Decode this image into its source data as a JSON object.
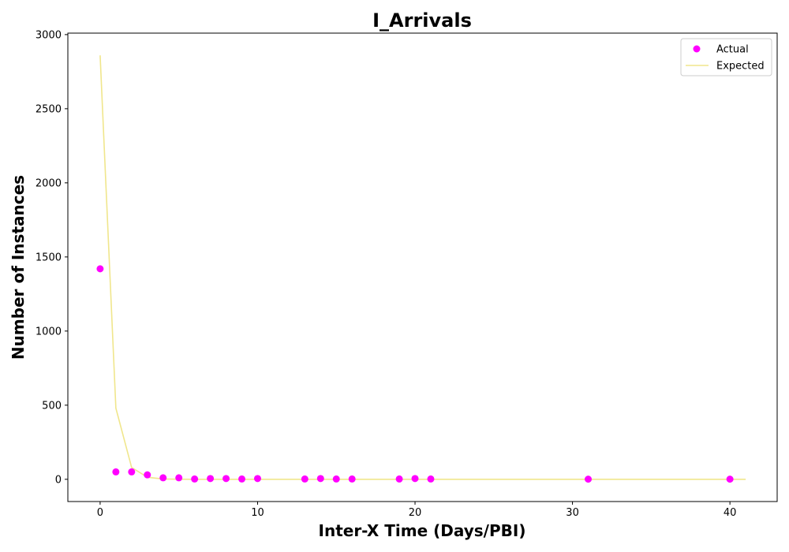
{
  "chart_data": {
    "type": "scatter",
    "title": "I_Arrivals",
    "xlabel": "Inter-X Time (Days/PBI)",
    "ylabel": "Number of Instances",
    "xlim": [
      -2.05,
      43
    ],
    "ylim": [
      -150,
      3010
    ],
    "xticks": [
      0,
      10,
      20,
      30,
      40
    ],
    "yticks": [
      0,
      500,
      1000,
      1500,
      2000,
      2500,
      3000
    ],
    "grid": false,
    "legend_position": "top-right",
    "series": [
      {
        "name": "Actual",
        "kind": "scatter",
        "color": "#ff00ff",
        "x": [
          0,
          1,
          2,
          3,
          4,
          5,
          6,
          7,
          8,
          9,
          10,
          13,
          14,
          15,
          16,
          19,
          20,
          21,
          31,
          40
        ],
        "y": [
          1420,
          50,
          50,
          30,
          10,
          10,
          2,
          5,
          5,
          2,
          5,
          2,
          5,
          2,
          2,
          2,
          5,
          2,
          1,
          1
        ]
      },
      {
        "name": "Expected",
        "kind": "line",
        "color": "#f0e68c",
        "x": [
          0,
          1,
          2,
          3,
          4,
          5,
          6,
          7,
          8,
          9,
          10,
          11,
          12,
          13,
          14,
          15,
          16,
          17,
          18,
          19,
          20,
          21,
          22,
          23,
          24,
          25,
          26,
          27,
          28,
          29,
          30,
          31,
          32,
          33,
          34,
          35,
          36,
          37,
          38,
          39,
          40,
          41
        ],
        "y": [
          2860,
          480,
          80,
          14,
          2,
          0.5,
          0.1,
          0,
          0,
          0,
          0,
          0,
          0,
          0,
          0,
          0,
          0,
          0,
          0,
          0,
          0,
          0,
          0,
          0,
          0,
          0,
          0,
          0,
          0,
          0,
          0,
          0,
          0,
          0,
          0,
          0,
          0,
          0,
          0,
          0,
          0,
          0
        ]
      }
    ]
  }
}
